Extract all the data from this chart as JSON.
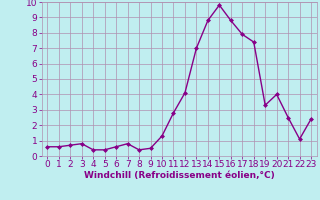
{
  "x": [
    0,
    1,
    2,
    3,
    4,
    5,
    6,
    7,
    8,
    9,
    10,
    11,
    12,
    13,
    14,
    15,
    16,
    17,
    18,
    19,
    20,
    21,
    22,
    23
  ],
  "y": [
    0.6,
    0.6,
    0.7,
    0.8,
    0.4,
    0.4,
    0.6,
    0.8,
    0.4,
    0.5,
    1.3,
    2.8,
    4.1,
    7.0,
    8.8,
    9.8,
    8.8,
    7.9,
    7.4,
    3.3,
    4.0,
    2.5,
    1.1,
    2.4
  ],
  "line_color": "#880088",
  "marker": "D",
  "marker_size": 2.0,
  "line_width": 1.0,
  "bg_color": "#c0eef0",
  "grid_color": "#b090b0",
  "xlabel": "Windchill (Refroidissement éolien,°C)",
  "ylabel": "",
  "xlim": [
    -0.5,
    23.5
  ],
  "ylim": [
    0,
    10
  ],
  "yticks": [
    0,
    1,
    2,
    3,
    4,
    5,
    6,
    7,
    8,
    9,
    10
  ],
  "xticks": [
    0,
    1,
    2,
    3,
    4,
    5,
    6,
    7,
    8,
    9,
    10,
    11,
    12,
    13,
    14,
    15,
    16,
    17,
    18,
    19,
    20,
    21,
    22,
    23
  ],
  "tick_label_color": "#880088",
  "xlabel_color": "#880088",
  "xlabel_fontsize": 6.5,
  "tick_fontsize": 6.5
}
